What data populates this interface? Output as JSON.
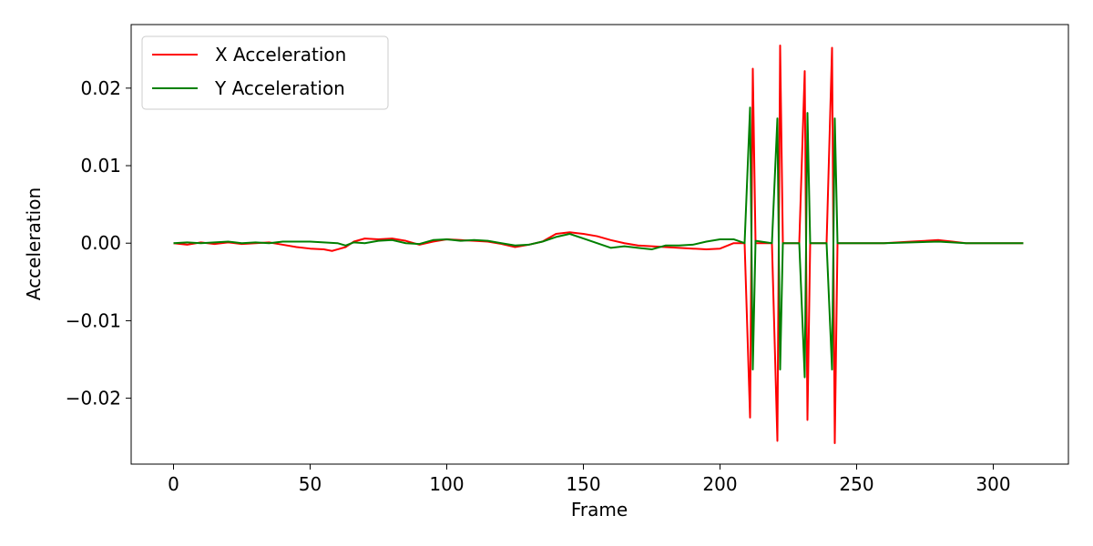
{
  "chart_data": {
    "type": "line",
    "title": "",
    "xlabel": "Frame",
    "ylabel": "Acceleration",
    "xlim": [
      -15.5,
      327.5
    ],
    "ylim": [
      -0.0285,
      0.0282
    ],
    "x_ticks": [
      0,
      50,
      100,
      150,
      200,
      250,
      300
    ],
    "x_tick_labels": [
      "0",
      "50",
      "100",
      "150",
      "200",
      "250",
      "300"
    ],
    "y_ticks": [
      -0.02,
      -0.01,
      0.0,
      0.01,
      0.02
    ],
    "y_tick_labels": [
      "−0.02",
      "−0.01",
      "0.00",
      "0.01",
      "0.02"
    ],
    "grid": false,
    "legend": {
      "position": "top-left"
    },
    "series": [
      {
        "name": "X Acceleration",
        "color": "#ff0000",
        "points": [
          [
            0,
            0.0
          ],
          [
            5,
            -0.0002
          ],
          [
            10,
            0.0001
          ],
          [
            15,
            -0.0001
          ],
          [
            20,
            0.0001
          ],
          [
            25,
            -0.0001
          ],
          [
            30,
            0.0
          ],
          [
            35,
            0.0001
          ],
          [
            40,
            -0.0002
          ],
          [
            45,
            -0.0005
          ],
          [
            50,
            -0.0007
          ],
          [
            55,
            -0.0008
          ],
          [
            58,
            -0.001
          ],
          [
            60,
            -0.0008
          ],
          [
            63,
            -0.0005
          ],
          [
            66,
            0.0002
          ],
          [
            70,
            0.0006
          ],
          [
            75,
            0.0005
          ],
          [
            80,
            0.0006
          ],
          [
            85,
            0.0003
          ],
          [
            90,
            -0.0002
          ],
          [
            95,
            0.0002
          ],
          [
            100,
            0.0005
          ],
          [
            105,
            0.0004
          ],
          [
            110,
            0.0003
          ],
          [
            115,
            0.0002
          ],
          [
            120,
            -0.0001
          ],
          [
            125,
            -0.0005
          ],
          [
            130,
            -0.0002
          ],
          [
            135,
            0.0002
          ],
          [
            140,
            0.0012
          ],
          [
            145,
            0.0014
          ],
          [
            150,
            0.0012
          ],
          [
            155,
            0.0009
          ],
          [
            160,
            0.0004
          ],
          [
            165,
            0.0
          ],
          [
            170,
            -0.0003
          ],
          [
            175,
            -0.0004
          ],
          [
            180,
            -0.0005
          ],
          [
            185,
            -0.0006
          ],
          [
            190,
            -0.0007
          ],
          [
            195,
            -0.0008
          ],
          [
            200,
            -0.0007
          ],
          [
            205,
            0.0
          ],
          [
            209,
            0.0
          ],
          [
            211,
            -0.0225
          ],
          [
            212,
            0.0225
          ],
          [
            213,
            0.0
          ],
          [
            219,
            0.0
          ],
          [
            221,
            -0.0255
          ],
          [
            222,
            0.0255
          ],
          [
            223,
            0.0
          ],
          [
            229,
            0.0
          ],
          [
            231,
            0.0222
          ],
          [
            232,
            -0.0228
          ],
          [
            233,
            0.0
          ],
          [
            239,
            0.0
          ],
          [
            241,
            0.0252
          ],
          [
            242,
            -0.0258
          ],
          [
            243,
            0.0
          ],
          [
            250,
            0.0
          ],
          [
            260,
            0.0
          ],
          [
            270,
            0.0002
          ],
          [
            280,
            0.0004
          ],
          [
            285,
            0.0002
          ],
          [
            290,
            0.0
          ],
          [
            300,
            0.0
          ],
          [
            305,
            0.0
          ],
          [
            311,
            0.0
          ]
        ]
      },
      {
        "name": "Y Acceleration",
        "color": "#008000",
        "points": [
          [
            0,
            0.0
          ],
          [
            5,
            0.0001
          ],
          [
            10,
            0.0
          ],
          [
            15,
            0.0001
          ],
          [
            20,
            0.0002
          ],
          [
            25,
            0.0
          ],
          [
            30,
            0.0001
          ],
          [
            35,
            0.0
          ],
          [
            40,
            0.0002
          ],
          [
            45,
            0.0002
          ],
          [
            50,
            0.0002
          ],
          [
            55,
            0.0001
          ],
          [
            60,
            0.0
          ],
          [
            63,
            -0.0003
          ],
          [
            66,
            0.0001
          ],
          [
            70,
            0.0
          ],
          [
            75,
            0.0003
          ],
          [
            80,
            0.0004
          ],
          [
            85,
            0.0
          ],
          [
            90,
            -0.0001
          ],
          [
            95,
            0.0004
          ],
          [
            100,
            0.0005
          ],
          [
            105,
            0.0003
          ],
          [
            110,
            0.0004
          ],
          [
            115,
            0.0003
          ],
          [
            120,
            0.0
          ],
          [
            125,
            -0.0003
          ],
          [
            130,
            -0.0002
          ],
          [
            135,
            0.0002
          ],
          [
            140,
            0.0008
          ],
          [
            145,
            0.0012
          ],
          [
            150,
            0.0006
          ],
          [
            155,
            0.0
          ],
          [
            160,
            -0.0006
          ],
          [
            165,
            -0.0004
          ],
          [
            170,
            -0.0006
          ],
          [
            175,
            -0.0008
          ],
          [
            180,
            -0.0003
          ],
          [
            185,
            -0.0003
          ],
          [
            190,
            -0.0002
          ],
          [
            195,
            0.0002
          ],
          [
            200,
            0.0005
          ],
          [
            205,
            0.0005
          ],
          [
            209,
            0.0
          ],
          [
            211,
            0.0175
          ],
          [
            212,
            -0.0163
          ],
          [
            213,
            0.0003
          ],
          [
            219,
            0.0
          ],
          [
            221,
            0.0161
          ],
          [
            222,
            -0.0163
          ],
          [
            223,
            0.0
          ],
          [
            229,
            0.0
          ],
          [
            231,
            -0.0173
          ],
          [
            232,
            0.0168
          ],
          [
            233,
            0.0
          ],
          [
            239,
            0.0
          ],
          [
            241,
            -0.0163
          ],
          [
            242,
            0.0161
          ],
          [
            243,
            0.0
          ],
          [
            250,
            0.0
          ],
          [
            260,
            0.0
          ],
          [
            270,
            0.0001
          ],
          [
            280,
            0.0002
          ],
          [
            290,
            0.0
          ],
          [
            300,
            0.0
          ],
          [
            305,
            0.0
          ],
          [
            311,
            0.0
          ]
        ]
      }
    ]
  }
}
